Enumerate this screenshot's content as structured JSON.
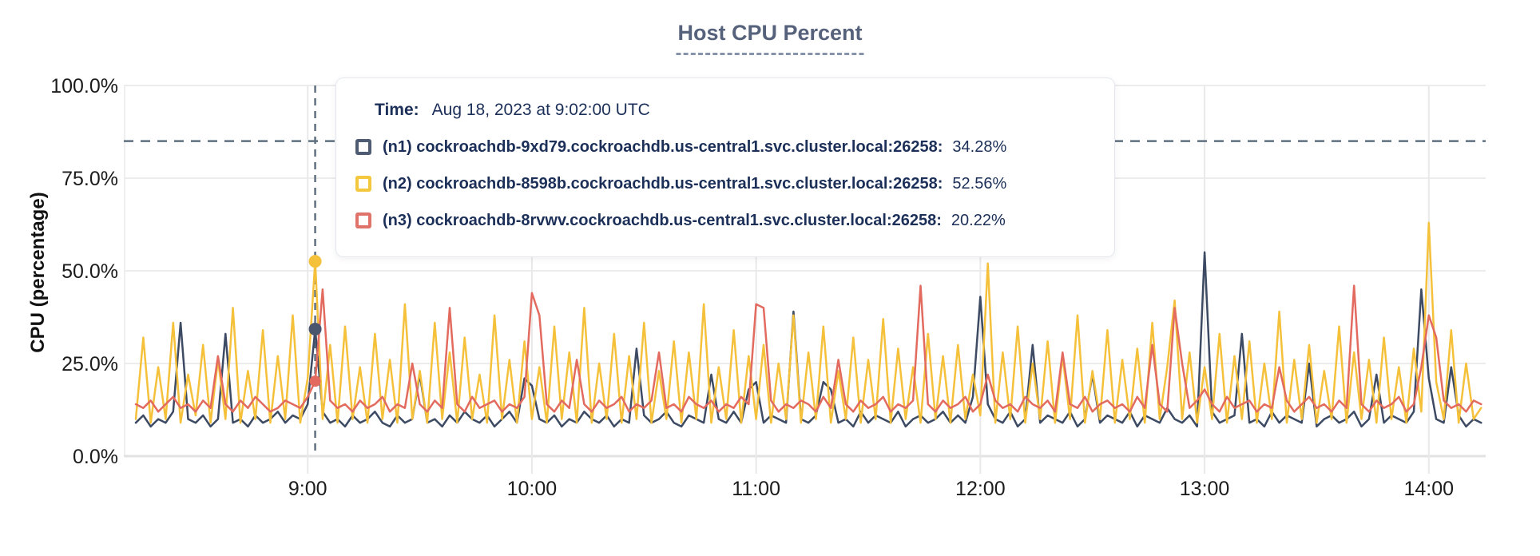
{
  "title": {
    "text": "Host CPU Percent"
  },
  "tooltip": {
    "time_label": "Time:",
    "time_value": "Aug 18, 2023 at 9:02:00 UTC",
    "rows": [
      {
        "label": "(n1) cockroachdb-9xd79.cockroachdb.us-central1.svc.cluster.local:26258:",
        "value": "34.28%",
        "color": "#4e5b73"
      },
      {
        "label": "(n2) cockroachdb-8598b.cockroachdb.us-central1.svc.cluster.local:26258:",
        "value": "52.56%",
        "color": "#f3c73e"
      },
      {
        "label": "(n3) cockroachdb-8rvwv.cockroachdb.us-central1.svc.cluster.local:26258:",
        "value": "20.22%",
        "color": "#e0736a"
      }
    ]
  },
  "colors": {
    "title": "#56627b",
    "tooltip_text": "#1b2f58",
    "grid": "#ececec",
    "grid_vertical": "#e9e9e9",
    "axis_zero": "#e2e2e2",
    "dashed_guide": "#5f7080",
    "tick_text": "#1b1b1b",
    "series_n1": "#3d4a63",
    "series_n2": "#f5c13b",
    "series_n3": "#e26a5e"
  },
  "chart_data": {
    "type": "line",
    "title": "Host CPU Percent",
    "xlabel": "",
    "ylabel": "CPU (percentage)",
    "ylim": [
      0,
      100
    ],
    "y_ticks": [
      "100.0%",
      "75.0%",
      "50.0%",
      "25.0%",
      "0.0%"
    ],
    "y_tick_values": [
      100,
      75,
      50,
      25,
      0
    ],
    "x_ticks": [
      "9:00",
      "10:00",
      "11:00",
      "12:00",
      "13:00",
      "14:00"
    ],
    "x_tick_indices": [
      23,
      53,
      83,
      113,
      143,
      173
    ],
    "x_range": [
      "8:14 UTC",
      "14:14 UTC"
    ],
    "sample_interval_minutes": 2,
    "grid": true,
    "legend_position": "tooltip",
    "threshold_percent": 85,
    "hover": {
      "time": "Aug 18, 2023 at 9:02:00 UTC",
      "index": 24,
      "values": [
        34.28,
        52.56,
        20.22
      ]
    },
    "series": [
      {
        "name": "(n1) cockroachdb-9xd79.cockroachdb.us-central1.svc.cluster.local:26258",
        "color": "#3d4a63",
        "values": [
          9,
          11,
          8,
          10,
          9,
          12,
          36,
          10,
          9,
          11,
          8,
          10,
          33,
          9,
          10,
          8,
          11,
          9,
          10,
          12,
          9,
          11,
          10,
          14,
          34.3,
          12,
          9,
          10,
          8,
          11,
          9,
          10,
          12,
          9,
          8,
          11,
          9,
          10,
          22,
          9,
          10,
          8,
          11,
          9,
          12,
          10,
          9,
          11,
          8,
          10,
          12,
          9,
          21,
          19,
          10,
          9,
          11,
          8,
          10,
          9,
          12,
          10,
          9,
          11,
          8,
          10,
          9,
          29,
          11,
          9,
          10,
          12,
          9,
          8,
          11,
          10,
          9,
          22,
          10,
          9,
          12,
          9,
          18,
          20,
          9,
          11,
          10,
          9,
          39,
          10,
          9,
          11,
          20,
          18,
          9,
          10,
          8,
          12,
          9,
          11,
          10,
          9,
          12,
          8,
          10,
          11,
          9,
          10,
          12,
          9,
          11,
          9,
          16,
          43,
          14,
          10,
          9,
          12,
          8,
          10,
          30,
          9,
          11,
          10,
          9,
          12,
          8,
          10,
          22,
          9,
          11,
          10,
          9,
          12,
          8,
          11,
          10,
          9,
          13,
          10,
          9,
          11,
          8,
          55,
          12,
          9,
          10,
          11,
          33,
          9,
          10,
          8,
          12,
          9,
          11,
          10,
          9,
          25,
          8,
          10,
          11,
          9,
          10,
          12,
          8,
          10,
          22,
          9,
          11,
          10,
          9,
          12,
          45,
          21,
          10,
          9,
          24,
          11,
          8,
          10,
          9
        ]
      },
      {
        "name": "(n2) cockroachdb-8598b.cockroachdb.us-central1.svc.cluster.local:26258",
        "color": "#f5c13b",
        "values": [
          10,
          32,
          9,
          24,
          10,
          36,
          9,
          22,
          11,
          30,
          9,
          26,
          10,
          40,
          9,
          23,
          10,
          34,
          9,
          27,
          10,
          38,
          9,
          21,
          52.6,
          10,
          30,
          9,
          35,
          10,
          24,
          9,
          33,
          10,
          26,
          9,
          41,
          10,
          23,
          9,
          36,
          10,
          28,
          9,
          32,
          10,
          22,
          9,
          38,
          10,
          26,
          9,
          31,
          10,
          24,
          9,
          35,
          10,
          28,
          9,
          40,
          9,
          25,
          10,
          33,
          9,
          27,
          10,
          36,
          9,
          23,
          10,
          31,
          9,
          28,
          10,
          41,
          9,
          24,
          10,
          34,
          9,
          27,
          10,
          30,
          9,
          25,
          10,
          38,
          9,
          28,
          10,
          35,
          9,
          23,
          10,
          32,
          9,
          26,
          10,
          37,
          9,
          29,
          10,
          24,
          9,
          33,
          10,
          27,
          9,
          30,
          10,
          22,
          11,
          52,
          9,
          28,
          10,
          35,
          9,
          25,
          10,
          31,
          9,
          27,
          10,
          38,
          9,
          23,
          10,
          34,
          9,
          26,
          10,
          29,
          9,
          36,
          10,
          24,
          42,
          10,
          28,
          9,
          24,
          10,
          33,
          9,
          27,
          10,
          31,
          9,
          25,
          10,
          39,
          9,
          26,
          10,
          30,
          9,
          23,
          10,
          35,
          9,
          28,
          10,
          26,
          9,
          32,
          10,
          24,
          9,
          29,
          12,
          63,
          20,
          10,
          34,
          9,
          25,
          10,
          13
        ]
      },
      {
        "name": "(n3) cockroachdb-8rvwv.cockroachdb.us-central1.svc.cluster.local:26258",
        "color": "#e26a5e",
        "values": [
          14,
          13,
          15,
          12,
          14,
          16,
          13,
          14,
          12,
          15,
          13,
          27,
          14,
          12,
          15,
          13,
          16,
          14,
          12,
          13,
          15,
          14,
          13,
          16,
          20.2,
          45,
          15,
          13,
          14,
          12,
          15,
          13,
          14,
          16,
          12,
          14,
          13,
          25,
          14,
          12,
          15,
          13,
          40,
          14,
          12,
          16,
          13,
          14,
          15,
          12,
          14,
          13,
          16,
          44,
          38,
          14,
          12,
          15,
          13,
          26,
          14,
          12,
          15,
          13,
          14,
          16,
          12,
          14,
          13,
          15,
          28,
          13,
          14,
          12,
          16,
          14,
          13,
          15,
          12,
          14,
          13,
          16,
          14,
          41,
          40,
          15,
          12,
          14,
          13,
          15,
          14,
          12,
          16,
          13,
          26,
          14,
          12,
          15,
          13,
          14,
          16,
          12,
          14,
          13,
          15,
          46,
          14,
          12,
          15,
          13,
          14,
          16,
          12,
          14,
          22,
          15,
          13,
          14,
          12,
          16,
          14,
          13,
          15,
          12,
          28,
          14,
          13,
          16,
          12,
          14,
          15,
          13,
          14,
          12,
          16,
          13,
          30,
          14,
          12,
          40,
          25,
          13,
          15,
          18,
          14,
          12,
          16,
          13,
          14,
          15,
          12,
          14,
          13,
          24,
          15,
          12,
          14,
          16,
          13,
          14,
          12,
          15,
          13,
          46,
          14,
          12,
          15,
          13,
          14,
          16,
          12,
          14,
          24,
          38,
          32,
          15,
          13,
          14,
          12,
          15,
          14
        ]
      }
    ]
  }
}
